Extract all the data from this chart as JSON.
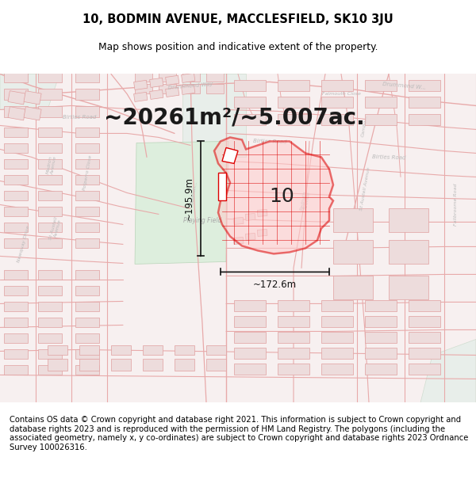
{
  "title_line1": "10, BODMIN AVENUE, MACCLESFIELD, SK10 3JU",
  "title_line2": "Map shows position and indicative extent of the property.",
  "area_text": "~20261m²/~5.007ac.",
  "label_number": "10",
  "dim_height": "~195.9m",
  "dim_width": "~172.6m",
  "footer_text": "Contains OS data © Crown copyright and database right 2021. This information is subject to Crown copyright and database rights 2023 and is reproduced with the permission of HM Land Registry. The polygons (including the associated geometry, namely x, y co-ordinates) are subject to Crown copyright and database rights 2023 Ordnance Survey 100026316.",
  "bg_color": "#f7f0f0",
  "street_color": "#e8aaaa",
  "building_fill": "#eddcdc",
  "building_edge": "#e0a0a0",
  "green_fill": "#e8eeea",
  "green_edge": "#d0ddd0",
  "poly_fill": "#ffcccc",
  "poly_edge": "#dd0000",
  "poly_alpha": 0.55,
  "dim_color": "#111111",
  "title_fontsize": 10.5,
  "subtitle_fontsize": 8.8,
  "area_fontsize": 20,
  "label_fontsize": 18,
  "dim_fontsize": 8.5,
  "footer_fontsize": 7.2,
  "figure_width": 6.0,
  "figure_height": 6.25,
  "dpi": 100
}
